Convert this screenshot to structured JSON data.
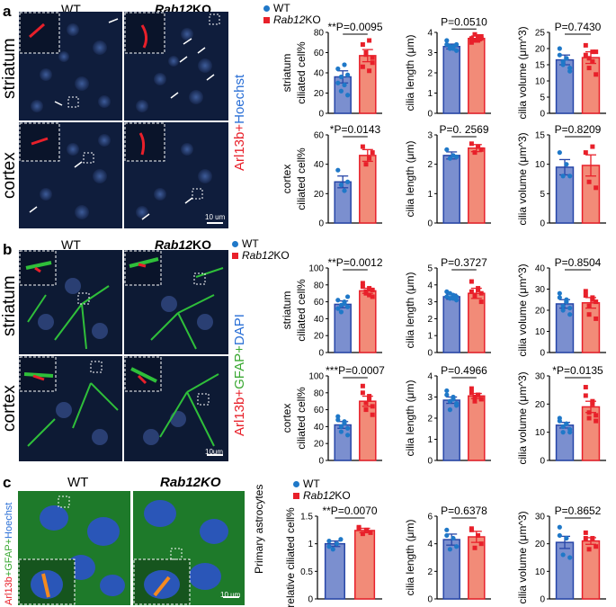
{
  "panel_labels": [
    "a",
    "b",
    "c"
  ],
  "image_headers": {
    "wt": "WT",
    "ko_prefix": "Rab12",
    "ko_suffix": "KO"
  },
  "row_labels": {
    "striatum": "striatum",
    "cortex": "cortex",
    "primary": "Primary astrocytes"
  },
  "stains": {
    "a": [
      {
        "text": "Arl13b",
        "color": "#e8202a"
      },
      {
        "text": "+",
        "color": "#e8202a"
      },
      {
        "text": "Hoechst",
        "color": "#2a6fd6"
      }
    ],
    "b": [
      {
        "text": "Arl13b",
        "color": "#e8202a"
      },
      {
        "text": "+",
        "color": "#e8202a"
      },
      {
        "text": "GFAP",
        "color": "#3aa832"
      },
      {
        "text": "+",
        "color": "#3aa832"
      },
      {
        "text": "DAPI",
        "color": "#2a6fd6"
      }
    ],
    "c": [
      {
        "text": "Arl13b",
        "color": "#e8202a"
      },
      {
        "text": "+",
        "color": "#3aa832"
      },
      {
        "text": "GFAP",
        "color": "#3aa832"
      },
      {
        "text": "+",
        "color": "#3aa832"
      },
      {
        "text": "Hoechst",
        "color": "#2a6fd6"
      }
    ]
  },
  "scale_bars": {
    "a": "10 um",
    "b": "10um",
    "c": "10 um"
  },
  "legend": {
    "wt": "WT",
    "ko_prefix": "Rab12",
    "ko_suffix": "KO"
  },
  "colors": {
    "wt_bar": "#7b8fcf",
    "wt_edge": "#2746a8",
    "ko_bar": "#f28b78",
    "ko_edge": "#e8202a",
    "wt_point": "#1f78c8",
    "ko_point": "#e8202a"
  },
  "chart_data": [
    {
      "id": "a1",
      "type": "bar",
      "panel": "a",
      "row_label": "striatum",
      "ylabel": "ciliated cell%",
      "ylim": [
        0,
        80
      ],
      "yticks": [
        0,
        20,
        40,
        60,
        80
      ],
      "pvalue": "**P=0.0095",
      "categories": [
        "WT",
        "Rab12KO"
      ],
      "values": [
        36,
        57
      ],
      "errors": [
        6,
        6
      ],
      "points": [
        [
          44,
          22,
          48,
          38,
          30,
          36,
          28,
          18
        ],
        [
          68,
          60,
          72,
          50,
          46,
          58,
          42,
          55
        ]
      ]
    },
    {
      "id": "a2",
      "type": "bar",
      "panel": "a",
      "row_label": "",
      "ylabel": "cilia length (μm)",
      "ylim": [
        0,
        4
      ],
      "yticks": [
        0,
        1,
        2,
        3,
        4
      ],
      "pvalue": "P=0.0510",
      "categories": [
        "WT",
        "Rab12KO"
      ],
      "values": [
        3.3,
        3.7
      ],
      "errors": [
        0.12,
        0.12
      ],
      "points": [
        [
          3.6,
          3.2,
          3.3,
          3.1,
          3.4,
          3.3,
          3.2,
          3.4
        ],
        [
          3.5,
          3.9,
          3.6,
          3.8,
          3.7,
          3.6,
          3.8,
          3.7
        ]
      ]
    },
    {
      "id": "a3",
      "type": "bar",
      "panel": "a",
      "row_label": "",
      "ylabel": "cilia volume (μm^3)",
      "ylim": [
        0,
        25
      ],
      "yticks": [
        0,
        5,
        10,
        15,
        20,
        25
      ],
      "pvalue": "P=0.7430",
      "categories": [
        "WT",
        "Rab12KO"
      ],
      "values": [
        16.5,
        17.2
      ],
      "errors": [
        1.5,
        1.8
      ],
      "points": [
        [
          20,
          15,
          17,
          13,
          18,
          16,
          17,
          14
        ],
        [
          21,
          14,
          19,
          12,
          18,
          17,
          16,
          19
        ]
      ]
    },
    {
      "id": "a4",
      "type": "bar",
      "panel": "a",
      "row_label": "cortex",
      "ylabel": "ciliated cell%",
      "ylim": [
        0,
        60
      ],
      "yticks": [
        0,
        20,
        40,
        60
      ],
      "pvalue": "*P=0.0143",
      "categories": [
        "WT",
        "Rab12KO"
      ],
      "values": [
        28,
        46
      ],
      "errors": [
        4,
        4
      ],
      "points": [
        [
          36,
          26,
          22,
          28
        ],
        [
          52,
          40,
          44,
          48
        ]
      ]
    },
    {
      "id": "a5",
      "type": "bar",
      "panel": "a",
      "row_label": "",
      "ylabel": "cilia length (μm)",
      "ylim": [
        0,
        3
      ],
      "yticks": [
        0,
        1,
        2,
        3
      ],
      "pvalue": "P=0. 2569",
      "categories": [
        "WT",
        "Rab12KO"
      ],
      "values": [
        2.3,
        2.55
      ],
      "errors": [
        0.12,
        0.12
      ],
      "points": [
        [
          2.5,
          2.2,
          2.3,
          2.25
        ],
        [
          2.7,
          2.4,
          2.6,
          2.5
        ]
      ]
    },
    {
      "id": "a6",
      "type": "bar",
      "panel": "a",
      "row_label": "",
      "ylabel": "cilia volume (μm^3)",
      "ylim": [
        0,
        15
      ],
      "yticks": [
        0,
        5,
        10,
        15
      ],
      "pvalue": "P=0.8209",
      "categories": [
        "WT",
        "Rab12KO"
      ],
      "values": [
        9.5,
        9.8
      ],
      "errors": [
        1.3,
        1.8
      ],
      "points": [
        [
          12,
          8,
          10,
          8
        ],
        [
          12,
          7,
          13,
          6
        ]
      ]
    },
    {
      "id": "b1",
      "type": "bar",
      "panel": "b",
      "row_label": "striatum",
      "ylabel": "ciliated cell%",
      "ylim": [
        0,
        100
      ],
      "yticks": [
        0,
        20,
        40,
        60,
        80,
        100
      ],
      "pvalue": "**P=0.0012",
      "categories": [
        "WT",
        "Rab12KO"
      ],
      "values": [
        57,
        73
      ],
      "errors": [
        4,
        3
      ],
      "points": [
        [
          62,
          48,
          58,
          66,
          52,
          56,
          60,
          54
        ],
        [
          82,
          70,
          76,
          66,
          78,
          72,
          68,
          74
        ]
      ]
    },
    {
      "id": "b2",
      "type": "bar",
      "panel": "b",
      "row_label": "",
      "ylabel": "cilia length (μm)",
      "ylim": [
        0,
        5
      ],
      "yticks": [
        0,
        1,
        2,
        3,
        4,
        5
      ],
      "pvalue": "P=0.3727",
      "categories": [
        "WT",
        "Rab12KO"
      ],
      "values": [
        3.3,
        3.5
      ],
      "errors": [
        0.15,
        0.3
      ],
      "points": [
        [
          3.6,
          3.2,
          3.4,
          3.1,
          3.3,
          3.5,
          3.2,
          3.3
        ],
        [
          4.2,
          3.4,
          3.8,
          3.0,
          3.6,
          3.3,
          3.7,
          3.5
        ]
      ]
    },
    {
      "id": "b3",
      "type": "bar",
      "panel": "b",
      "row_label": "",
      "ylabel": "cilia volume (μm^3)",
      "ylim": [
        0,
        40
      ],
      "yticks": [
        0,
        10,
        20,
        30,
        40
      ],
      "pvalue": "P=0.8504",
      "categories": [
        "WT",
        "Rab12KO"
      ],
      "values": [
        23,
        23.5
      ],
      "errors": [
        2,
        2.5
      ],
      "points": [
        [
          28,
          20,
          24,
          18,
          26,
          22,
          25,
          21
        ],
        [
          29,
          18,
          25,
          16,
          27,
          22,
          26,
          24
        ]
      ]
    },
    {
      "id": "b4",
      "type": "bar",
      "panel": "b",
      "row_label": "cortex",
      "ylabel": "ciliated cell%",
      "ylim": [
        0,
        100
      ],
      "yticks": [
        0,
        20,
        40,
        60,
        80,
        100
      ],
      "pvalue": "***P=0.0007",
      "categories": [
        "WT",
        "Rab12KO"
      ],
      "values": [
        42,
        70
      ],
      "errors": [
        4,
        6
      ],
      "points": [
        [
          52,
          34,
          44,
          30,
          48,
          40,
          46,
          38
        ],
        [
          88,
          60,
          76,
          54,
          80,
          68,
          72,
          64
        ]
      ]
    },
    {
      "id": "b5",
      "type": "bar",
      "panel": "b",
      "row_label": "",
      "ylabel": "cilia length (μm)",
      "ylim": [
        0,
        4
      ],
      "yticks": [
        0,
        1,
        2,
        3,
        4
      ],
      "pvalue": "P=0.4966",
      "categories": [
        "WT",
        "Rab12KO"
      ],
      "values": [
        2.85,
        3.05
      ],
      "errors": [
        0.15,
        0.12
      ],
      "points": [
        [
          3.3,
          2.4,
          2.9,
          2.6,
          3.1,
          2.8,
          3.0,
          2.7
        ],
        [
          3.4,
          2.8,
          3.1,
          2.9,
          3.2,
          3.0,
          3.1,
          2.9
        ]
      ]
    },
    {
      "id": "b6",
      "type": "bar",
      "panel": "b",
      "row_label": "",
      "ylabel": "cilia volume (μm^3)",
      "ylim": [
        0,
        30
      ],
      "yticks": [
        0,
        10,
        20,
        30
      ],
      "pvalue": "*P=0.0135",
      "categories": [
        "WT",
        "Rab12KO"
      ],
      "values": [
        12.5,
        19
      ],
      "errors": [
        1,
        2
      ],
      "points": [
        [
          15,
          10,
          13,
          11,
          14,
          12,
          13,
          10
        ],
        [
          26,
          15,
          21,
          14,
          23,
          17,
          20,
          16
        ]
      ]
    },
    {
      "id": "c1",
      "type": "bar",
      "panel": "c",
      "row_label": "",
      "ylabel": "relative ciliated cell%",
      "ylim": [
        0,
        1.5
      ],
      "yticks": [
        0.0,
        0.5,
        1.0,
        1.5
      ],
      "pvalue": "**P=0.0070",
      "categories": [
        "WT",
        "Rab12KO"
      ],
      "values": [
        1.0,
        1.24
      ],
      "errors": [
        0.05,
        0.04
      ],
      "points": [
        [
          1.05,
          0.9,
          1.0,
          1.08,
          0.95
        ],
        [
          1.3,
          1.18,
          1.25,
          1.2,
          1.28
        ]
      ]
    },
    {
      "id": "c2",
      "type": "bar",
      "panel": "c",
      "row_label": "",
      "ylabel": "cilia length (μm)",
      "ylim": [
        0,
        6
      ],
      "yticks": [
        0,
        2,
        4,
        6
      ],
      "pvalue": "P=0.6378",
      "categories": [
        "WT",
        "Rab12KO"
      ],
      "values": [
        4.3,
        4.5
      ],
      "errors": [
        0.4,
        0.4
      ],
      "points": [
        [
          5.0,
          3.6,
          4.4,
          3.8,
          4.6
        ],
        [
          5.1,
          3.7,
          4.6,
          4.0,
          5.0
        ]
      ]
    },
    {
      "id": "c3",
      "type": "bar",
      "panel": "c",
      "row_label": "",
      "ylabel": "cilia volume (μm^3)",
      "ylim": [
        0,
        30
      ],
      "yticks": [
        0,
        10,
        20,
        30
      ],
      "pvalue": "P=0.8652",
      "categories": [
        "WT",
        "Rab12KO"
      ],
      "values": [
        20.5,
        21
      ],
      "errors": [
        2.2,
        1.2
      ],
      "points": [
        [
          26,
          16,
          22,
          15,
          23
        ],
        [
          24,
          18,
          22,
          19,
          22
        ]
      ]
    }
  ]
}
